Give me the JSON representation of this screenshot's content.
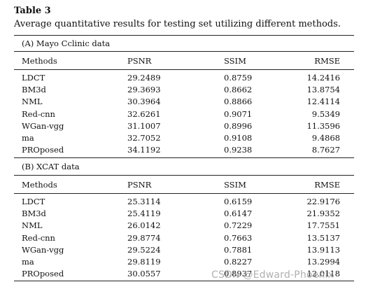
{
  "title": {
    "label": "Table 3",
    "caption": "Average quantitative results for testing set utilizing different methods."
  },
  "sections": [
    {
      "name": "(A) Mayo Cclinic data",
      "headers": [
        "Methods",
        "PSNR",
        "SSIM",
        "RMSE"
      ],
      "rows": [
        [
          "LDCT",
          "29.2489",
          "0.8759",
          "14.2416"
        ],
        [
          "BM3d",
          "29.3693",
          "0.8662",
          "13.8754"
        ],
        [
          "NML",
          "30.3964",
          "0.8866",
          "12.4114"
        ],
        [
          "Red-cnn",
          "32.6261",
          "0.9071",
          "9.5349"
        ],
        [
          "WGan-vgg",
          "31.1007",
          "0.8996",
          "11.3596"
        ],
        [
          "ma",
          "32.7052",
          "0.9108",
          "9.4868"
        ],
        [
          "PROposed",
          "34.1192",
          "0.9238",
          "8.7627"
        ]
      ]
    },
    {
      "name": "(B) XCAT data",
      "headers": [
        "Methods",
        "PSNR",
        "SSIM",
        "RMSE"
      ],
      "rows": [
        [
          "LDCT",
          "25.3114",
          "0.6159",
          "22.9176"
        ],
        [
          "BM3d",
          "25.4119",
          "0.6147",
          "21.9352"
        ],
        [
          "NML",
          "26.0142",
          "0.7229",
          "17.7551"
        ],
        [
          "Red-cnn",
          "29.8774",
          "0.7663",
          "13.5137"
        ],
        [
          "WGan-vgg",
          "29.5224",
          "0.7881",
          "13.9113"
        ],
        [
          "ma",
          "29.8119",
          "0.8227",
          "13.2994"
        ],
        [
          "PROposed",
          "30.0557",
          "0.8937",
          "12.0118"
        ]
      ]
    }
  ],
  "watermark": "CSDN @Edward-Phoenix"
}
